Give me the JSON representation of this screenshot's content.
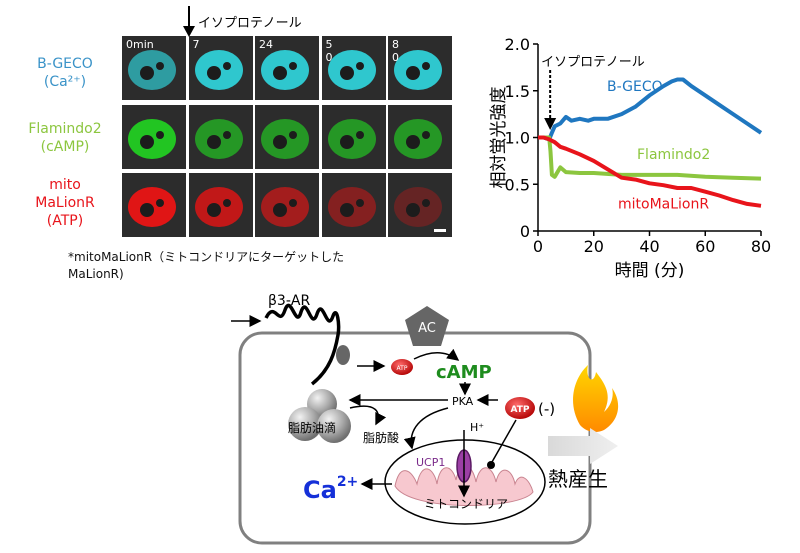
{
  "micrographs": {
    "isoproterenol_label": "イソプロテノール",
    "timepoints": [
      "0min",
      "7",
      "24",
      "5\n0",
      "8\n0"
    ],
    "rows": [
      {
        "label": "B-GECO\n(Ca²⁺)",
        "color": "#3a93c8",
        "tile_color": "#30d8e0"
      },
      {
        "label": "Flamindo2\n(cAMP)",
        "color": "#8cc63f",
        "tile_color": "#22c522"
      },
      {
        "label": "mito\nMaLionR\n(ATP)",
        "color": "#e8141b",
        "tile_color": "#e01515"
      }
    ],
    "footnote": "*mitoMaLionR（ミトコンドリアにターゲットした\nMaLionR)"
  },
  "chart_data": {
    "type": "line",
    "xlabel": "時間 (分)",
    "ylabel": "相対蛍光強度",
    "xlim": [
      0,
      80
    ],
    "ylim": [
      0,
      2.0
    ],
    "xticks": [
      "0",
      "20",
      "40",
      "60",
      "80"
    ],
    "yticks": [
      "0",
      "0.5",
      "1.0",
      "1.5",
      "2.0"
    ],
    "annotation": "イソプロテノール",
    "annotation_x": 4,
    "series": [
      {
        "name": "B-GECO",
        "color": "#1f77c0",
        "x": [
          0,
          2,
          4,
          5,
          6,
          8,
          10,
          12,
          15,
          18,
          20,
          25,
          30,
          35,
          40,
          45,
          48,
          50,
          52,
          55,
          60,
          65,
          70,
          75,
          80
        ],
        "y": [
          1.0,
          1.0,
          0.98,
          1.05,
          1.12,
          1.15,
          1.22,
          1.18,
          1.2,
          1.18,
          1.2,
          1.2,
          1.25,
          1.33,
          1.45,
          1.55,
          1.6,
          1.62,
          1.62,
          1.55,
          1.45,
          1.35,
          1.25,
          1.15,
          1.05
        ]
      },
      {
        "name": "Flamindo2",
        "color": "#8cc63f",
        "x": [
          0,
          2,
          4,
          4.5,
          5,
          6,
          8,
          10,
          15,
          20,
          30,
          40,
          50,
          60,
          70,
          80
        ],
        "y": [
          1.0,
          1.0,
          1.0,
          0.85,
          0.6,
          0.58,
          0.68,
          0.63,
          0.62,
          0.62,
          0.6,
          0.6,
          0.6,
          0.58,
          0.57,
          0.56
        ]
      },
      {
        "name": "mitoMaLionR",
        "color": "#e8141b",
        "x": [
          0,
          2,
          4,
          6,
          8,
          10,
          15,
          20,
          25,
          30,
          35,
          40,
          45,
          50,
          55,
          60,
          65,
          70,
          75,
          80
        ],
        "y": [
          1.0,
          1.0,
          0.98,
          0.95,
          0.9,
          0.88,
          0.82,
          0.75,
          0.66,
          0.57,
          0.55,
          0.51,
          0.49,
          0.46,
          0.46,
          0.42,
          0.38,
          0.33,
          0.29,
          0.27
        ]
      }
    ]
  },
  "diagram": {
    "receptor": "β3-AR",
    "ac": "AC",
    "atp_small": "ATP",
    "camp": "cAMP",
    "pka": "PKA",
    "h_plus": "H⁺",
    "atp_mito": "ATP",
    "atp_minus": "(-)",
    "fat_droplet": "脂肪油滴",
    "fatty_acid": "脂肪酸",
    "ucp1": "UCP1",
    "mitochondria": "ミトコンドリア",
    "ca_base": "Ca",
    "ca_charge": "2+",
    "heat": "熱産生"
  }
}
